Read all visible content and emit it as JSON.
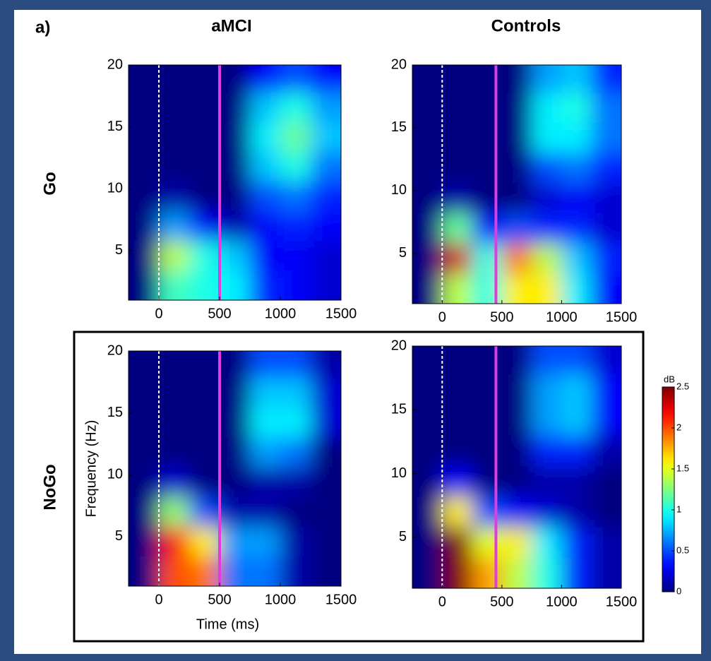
{
  "label": "a)",
  "columns": [
    "aMCI",
    "Controls"
  ],
  "rows": [
    "Go",
    "NoGo"
  ],
  "chart_data": [
    {
      "type": "heatmap",
      "x": [
        -125,
        125,
        375,
        625,
        875,
        1125,
        1375
      ],
      "y": [
        2.2,
        4.6,
        7,
        9.4,
        11.8,
        14.2,
        16.6,
        19
      ],
      "values": [
        [
          0,
          1.1,
          1.0,
          0.9,
          0.4,
          0.3,
          0.2
        ],
        [
          0,
          1.4,
          1.0,
          0.8,
          0.3,
          0.3,
          0.2
        ],
        [
          0,
          0.7,
          0.3,
          0.1,
          0.3,
          0.4,
          0.3
        ],
        [
          0,
          0.1,
          0,
          0,
          0.5,
          0.6,
          0.4
        ],
        [
          0,
          0,
          0,
          0,
          0.8,
          1.0,
          0.6
        ],
        [
          0,
          0,
          0,
          0,
          0.9,
          1.2,
          0.8
        ],
        [
          0,
          0,
          0,
          0,
          0.8,
          1.0,
          0.7
        ],
        [
          0,
          0,
          0,
          0,
          0.3,
          0.5,
          0.3
        ]
      ],
      "xlim": [
        -250,
        1500
      ],
      "ylim": [
        1,
        20
      ],
      "xticks": [
        0,
        500,
        1000,
        1500
      ],
      "yticks": [
        5,
        10,
        15,
        20
      ],
      "vlines": [
        {
          "x": 0,
          "color": "#ffffff",
          "dashed": true
        },
        {
          "x": 500,
          "color": "#e23be0",
          "dashed": false
        }
      ]
    },
    {
      "type": "heatmap",
      "x": [
        -125,
        125,
        375,
        625,
        875,
        1125,
        1375
      ],
      "y": [
        2.2,
        4.6,
        7,
        9.4,
        11.8,
        14.2,
        16.6,
        19
      ],
      "values": [
        [
          0,
          1.4,
          1.0,
          1.6,
          1.6,
          0.9,
          0.3
        ],
        [
          0,
          2.3,
          1.0,
          1.9,
          1.4,
          0.8,
          0.4
        ],
        [
          0,
          1.2,
          0.3,
          0.5,
          0.4,
          0.4,
          0.2
        ],
        [
          0,
          0.1,
          0,
          0,
          0.2,
          0.3,
          0.2
        ],
        [
          0,
          0,
          0,
          0,
          0.5,
          0.6,
          0.4
        ],
        [
          0,
          0,
          0,
          0,
          0.9,
          0.9,
          0.6
        ],
        [
          0,
          0,
          0,
          0,
          0.9,
          1.0,
          0.6
        ],
        [
          0,
          0,
          0,
          0,
          0.7,
          0.8,
          0.4
        ]
      ],
      "xlim": [
        -250,
        1500
      ],
      "ylim": [
        1,
        20
      ],
      "xticks": [
        0,
        500,
        1000,
        1500
      ],
      "yticks": [
        5,
        10,
        15,
        20
      ],
      "vlines": [
        {
          "x": 0,
          "color": "#ffffff",
          "dashed": true
        },
        {
          "x": 450,
          "color": "#e23be0",
          "dashed": false
        }
      ]
    },
    {
      "type": "heatmap",
      "x": [
        -125,
        125,
        375,
        625,
        875,
        1125,
        1375
      ],
      "y": [
        2.2,
        4.6,
        7,
        9.4,
        11.8,
        14.2,
        16.6,
        19
      ],
      "values": [
        [
          0,
          2.0,
          1.9,
          0.6,
          0.6,
          0.1,
          0
        ],
        [
          0,
          2.2,
          1.6,
          0.7,
          0.7,
          0.1,
          0
        ],
        [
          0,
          1.3,
          0.5,
          0.1,
          0.1,
          0,
          0
        ],
        [
          0,
          0.2,
          0,
          0,
          0.1,
          0.1,
          0
        ],
        [
          0,
          0,
          0,
          0,
          0.7,
          0.6,
          0
        ],
        [
          0,
          0,
          0,
          0,
          0.9,
          0.9,
          0.2
        ],
        [
          0,
          0,
          0,
          0,
          0.8,
          0.8,
          0.2
        ],
        [
          0,
          0,
          0,
          0,
          0.5,
          0.5,
          0.1
        ]
      ],
      "xlim": [
        -250,
        1500
      ],
      "ylim": [
        1,
        20
      ],
      "xticks": [
        0,
        500,
        1000,
        1500
      ],
      "yticks": [
        5,
        10,
        15,
        20
      ],
      "xlabel": "Time (ms)",
      "ylabel": "Frequency (Hz)",
      "vlines": [
        {
          "x": 0,
          "color": "#ffffff",
          "dashed": true
        },
        {
          "x": 500,
          "color": "#e23be0",
          "dashed": false
        }
      ]
    },
    {
      "type": "heatmap",
      "x": [
        -125,
        125,
        375,
        625,
        875,
        1125,
        1375
      ],
      "y": [
        2.2,
        4.6,
        7,
        9.4,
        11.8,
        14.2,
        16.6,
        19
      ],
      "values": [
        [
          0,
          2.5,
          1.8,
          1.4,
          1.0,
          0.4,
          0.1
        ],
        [
          0,
          2.5,
          1.5,
          1.6,
          0.9,
          0.4,
          0.1
        ],
        [
          0,
          1.6,
          0.5,
          0.3,
          0.2,
          0.1,
          0
        ],
        [
          0,
          0.3,
          0,
          0,
          0.1,
          0.1,
          0
        ],
        [
          0,
          0,
          0,
          0,
          0.4,
          0.4,
          0.1
        ],
        [
          0,
          0,
          0,
          0,
          0.7,
          0.8,
          0.3
        ],
        [
          0,
          0,
          0,
          0,
          0.7,
          0.8,
          0.3
        ],
        [
          0,
          0,
          0,
          0,
          0.5,
          0.5,
          0.2
        ]
      ],
      "xlim": [
        -250,
        1500
      ],
      "ylim": [
        1,
        20
      ],
      "xticks": [
        0,
        500,
        1000,
        1500
      ],
      "yticks": [
        5,
        10,
        15,
        20
      ],
      "vlines": [
        {
          "x": 0,
          "color": "#ffffff",
          "dashed": true
        },
        {
          "x": 450,
          "color": "#e23be0",
          "dashed": false
        }
      ]
    }
  ],
  "colorbar": {
    "title": "dB",
    "colormap": "jet",
    "clim": [
      0,
      2.5
    ],
    "ticks": [
      0,
      0.5,
      1,
      1.5,
      2,
      2.5
    ]
  }
}
